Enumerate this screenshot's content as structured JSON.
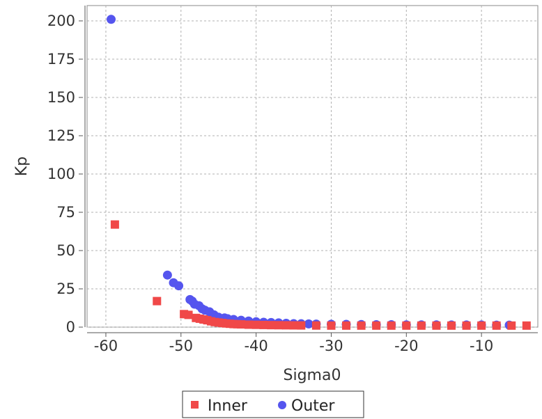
{
  "chart_data": {
    "type": "scatter",
    "title": "",
    "xlabel": "Sigma0",
    "ylabel": "Kp",
    "xlim": [
      -62.5,
      -2.5
    ],
    "ylim": [
      0,
      210
    ],
    "x_ticks": [
      -60,
      -50,
      -40,
      -30,
      -20,
      -10
    ],
    "x_tick_labels": [
      "-60",
      "-50",
      "-40",
      "-30",
      "-20",
      "-10"
    ],
    "y_ticks": [
      0,
      25,
      50,
      75,
      100,
      125,
      150,
      175,
      200
    ],
    "y_tick_labels": [
      "0",
      "25",
      "50",
      "75",
      "100",
      "125",
      "150",
      "175",
      "200"
    ],
    "grid": true,
    "legend": {
      "placement": "bottom-center",
      "entries": [
        "Inner",
        "Outer"
      ]
    },
    "series": [
      {
        "name": "Inner",
        "marker": "square",
        "color": "#f04848",
        "points": [
          [
            -58.8,
            67
          ],
          [
            -53.2,
            17
          ],
          [
            -49.6,
            8.5
          ],
          [
            -49.0,
            8
          ],
          [
            -48.0,
            6
          ],
          [
            -47.5,
            5.5
          ],
          [
            -47.0,
            5
          ],
          [
            -46.5,
            4.5
          ],
          [
            -46.0,
            3.8
          ],
          [
            -45.5,
            3.3
          ],
          [
            -45.0,
            3
          ],
          [
            -44.5,
            2.7
          ],
          [
            -44.0,
            2.4
          ],
          [
            -43.5,
            2.2
          ],
          [
            -43.0,
            2
          ],
          [
            -42.5,
            1.9
          ],
          [
            -42.0,
            1.8
          ],
          [
            -41.0,
            1.6
          ],
          [
            -40.0,
            1.5
          ],
          [
            -39.0,
            1.4
          ],
          [
            -38.0,
            1.3
          ],
          [
            -37.0,
            1.25
          ],
          [
            -36.0,
            1.2
          ],
          [
            -35.0,
            1.15
          ],
          [
            -34.0,
            1.1
          ],
          [
            -32.0,
            1.05
          ],
          [
            -30.0,
            1.0
          ],
          [
            -28.0,
            1.0
          ],
          [
            -26.0,
            1.0
          ],
          [
            -24.0,
            1.0
          ],
          [
            -22.0,
            1.0
          ],
          [
            -20.0,
            1.0
          ],
          [
            -18.0,
            1.0
          ],
          [
            -16.0,
            1.0
          ],
          [
            -14.0,
            1.0
          ],
          [
            -12.0,
            1.0
          ],
          [
            -10.0,
            1.0
          ],
          [
            -8.0,
            1.0
          ],
          [
            -6.0,
            1.0
          ],
          [
            -4.0,
            1.0
          ]
        ]
      },
      {
        "name": "Outer",
        "marker": "circle",
        "color": "#5555ee",
        "points": [
          [
            -59.3,
            201
          ],
          [
            -51.8,
            34
          ],
          [
            -51.0,
            29
          ],
          [
            -50.3,
            27
          ],
          [
            -48.8,
            18
          ],
          [
            -48.5,
            17
          ],
          [
            -48.2,
            15
          ],
          [
            -47.6,
            14
          ],
          [
            -47.2,
            12
          ],
          [
            -46.8,
            11
          ],
          [
            -46.2,
            10
          ],
          [
            -45.6,
            8
          ],
          [
            -45.0,
            6.5
          ],
          [
            -44.2,
            6
          ],
          [
            -43.8,
            5.5
          ],
          [
            -43.0,
            5
          ],
          [
            -42.0,
            4.5
          ],
          [
            -41.0,
            4
          ],
          [
            -40.0,
            3.5
          ],
          [
            -39.0,
            3.2
          ],
          [
            -38.0,
            3
          ],
          [
            -37.0,
            2.8
          ],
          [
            -36.0,
            2.5
          ],
          [
            -35.0,
            2.3
          ],
          [
            -34.0,
            2.2
          ],
          [
            -33.0,
            2.1
          ],
          [
            -32.0,
            2.0
          ],
          [
            -30.0,
            1.9
          ],
          [
            -28.0,
            1.8
          ],
          [
            -26.0,
            1.7
          ],
          [
            -24.0,
            1.6
          ],
          [
            -22.0,
            1.6
          ],
          [
            -20.0,
            1.5
          ],
          [
            -18.0,
            1.5
          ],
          [
            -16.0,
            1.5
          ],
          [
            -14.0,
            1.4
          ],
          [
            -12.0,
            1.4
          ],
          [
            -10.0,
            1.4
          ],
          [
            -8.0,
            1.3
          ],
          [
            -6.3,
            1.3
          ]
        ]
      }
    ]
  }
}
